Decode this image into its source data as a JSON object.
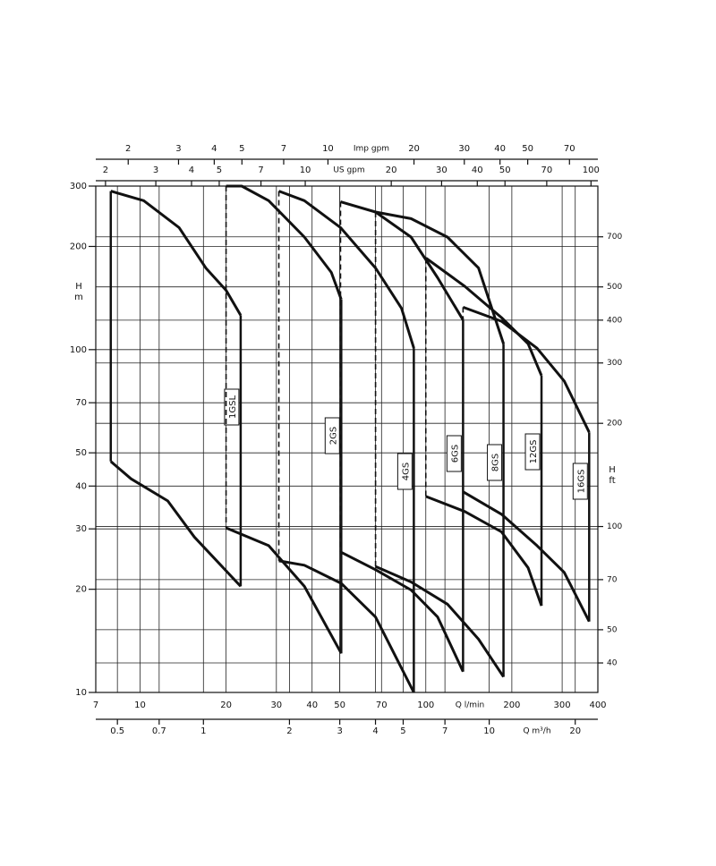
{
  "chart_data": {
    "type": "pump-curves",
    "xlabel": "Q l/min",
    "xscale": "log",
    "yscale": "log",
    "xlim": [
      7,
      400
    ],
    "xticks": [
      7,
      10,
      20,
      30,
      40,
      50,
      70,
      100,
      200,
      300,
      400
    ],
    "ylim": [
      10,
      300
    ],
    "yticks": [
      10,
      20,
      30,
      40,
      50,
      70,
      100,
      200,
      300
    ],
    "ylabel": [
      "H",
      "m"
    ],
    "grid": true,
    "color": "#111111",
    "top_axes": [
      {
        "label": "Imp gpm",
        "lim": [
          1.54,
          87.99
        ],
        "ticks": [
          2,
          3,
          4,
          5,
          7,
          10,
          20,
          30,
          40,
          50,
          70
        ]
      },
      {
        "label": "US gpm",
        "lim": [
          1.849,
          105.68
        ],
        "ticks": [
          2,
          3,
          4,
          5,
          7,
          10,
          20,
          30,
          40,
          50,
          70,
          100
        ]
      }
    ],
    "bottom_axis": {
      "label": "Q m³/h",
      "lim": [
        0.42,
        24
      ],
      "ticks": [
        0.5,
        0.7,
        1,
        2,
        3,
        4,
        5,
        7,
        10,
        20
      ]
    },
    "right_axis": {
      "label": [
        "H",
        "ft"
      ],
      "lim": [
        32.81,
        984.25
      ],
      "ticks": [
        40,
        50,
        70,
        100,
        200,
        300,
        400,
        500,
        700
      ]
    },
    "series": [
      {
        "name": "1GSL",
        "left_edge": "solid",
        "x_upper": [
          7.9,
          10.3,
          13.7,
          17.0,
          20.0,
          22.5
        ],
        "upper": [
          290,
          272,
          227,
          173,
          149,
          126
        ],
        "x_lower": [
          7.9,
          9.3,
          12.5,
          15.5,
          22.5
        ],
        "lower": [
          47.2,
          42,
          36.2,
          28.4,
          20.4
        ]
      },
      {
        "name": "2GS",
        "left_edge": "dashed",
        "x_upper": [
          20.0,
          22.7,
          28.2,
          37.6,
          46.7,
          50.6
        ],
        "upper": [
          300,
          300,
          272,
          213,
          168,
          140
        ],
        "x_lower": [
          20.0,
          28.2,
          37.6,
          50.6
        ],
        "lower": [
          30.2,
          26.8,
          20.4,
          13.0
        ]
      },
      {
        "name": "4GS",
        "left_edge": "dashed",
        "x_upper": [
          30.6,
          37.6,
          50.3,
          66.7,
          82.2,
          90.8
        ],
        "upper": [
          290,
          272,
          227,
          173,
          132,
          101
        ],
        "x_lower": [
          30.6,
          37.6,
          50.6,
          66.7,
          90.8
        ],
        "lower": [
          24.2,
          23.5,
          20.8,
          16.6,
          10
        ]
      },
      {
        "name": "6GS",
        "left_edge": "dashed",
        "x_upper": [
          50.3,
          66.7,
          88.8,
          110,
          135
        ],
        "upper": [
          270,
          252,
          213,
          162,
          122
        ],
        "x_lower": [
          50.3,
          66.7,
          88.8,
          110,
          135
        ],
        "lower": [
          25.7,
          22.8,
          19.9,
          16.6,
          11.5
        ]
      },
      {
        "name": "8GS",
        "left_edge": "dashed",
        "x_upper": [
          66.7,
          88.8,
          119,
          153,
          187
        ],
        "upper": [
          252,
          241,
          213,
          173,
          104
        ],
        "x_lower": [
          66.7,
          88.8,
          119,
          153,
          187
        ],
        "lower": [
          23.3,
          21,
          18.1,
          14.3,
          11.1
        ]
      },
      {
        "name": "12GS",
        "left_edge": "dashed",
        "x_upper": [
          100,
          137,
          184,
          228,
          254
        ],
        "upper": [
          185,
          153,
          124,
          104,
          84
        ],
        "x_lower": [
          100,
          137,
          184,
          228,
          254
        ],
        "lower": [
          37.3,
          33.7,
          29.4,
          23.1,
          17.9
        ]
      },
      {
        "name": "16GS",
        "left_edge": "dashed",
        "x_upper": [
          135,
          184,
          245,
          305,
          373
        ],
        "upper": [
          133,
          121,
          101,
          81,
          57.4
        ],
        "x_lower": [
          135,
          184,
          245,
          305,
          373
        ],
        "lower": [
          38.5,
          33.1,
          26.8,
          22.4,
          16.1
        ]
      }
    ]
  }
}
